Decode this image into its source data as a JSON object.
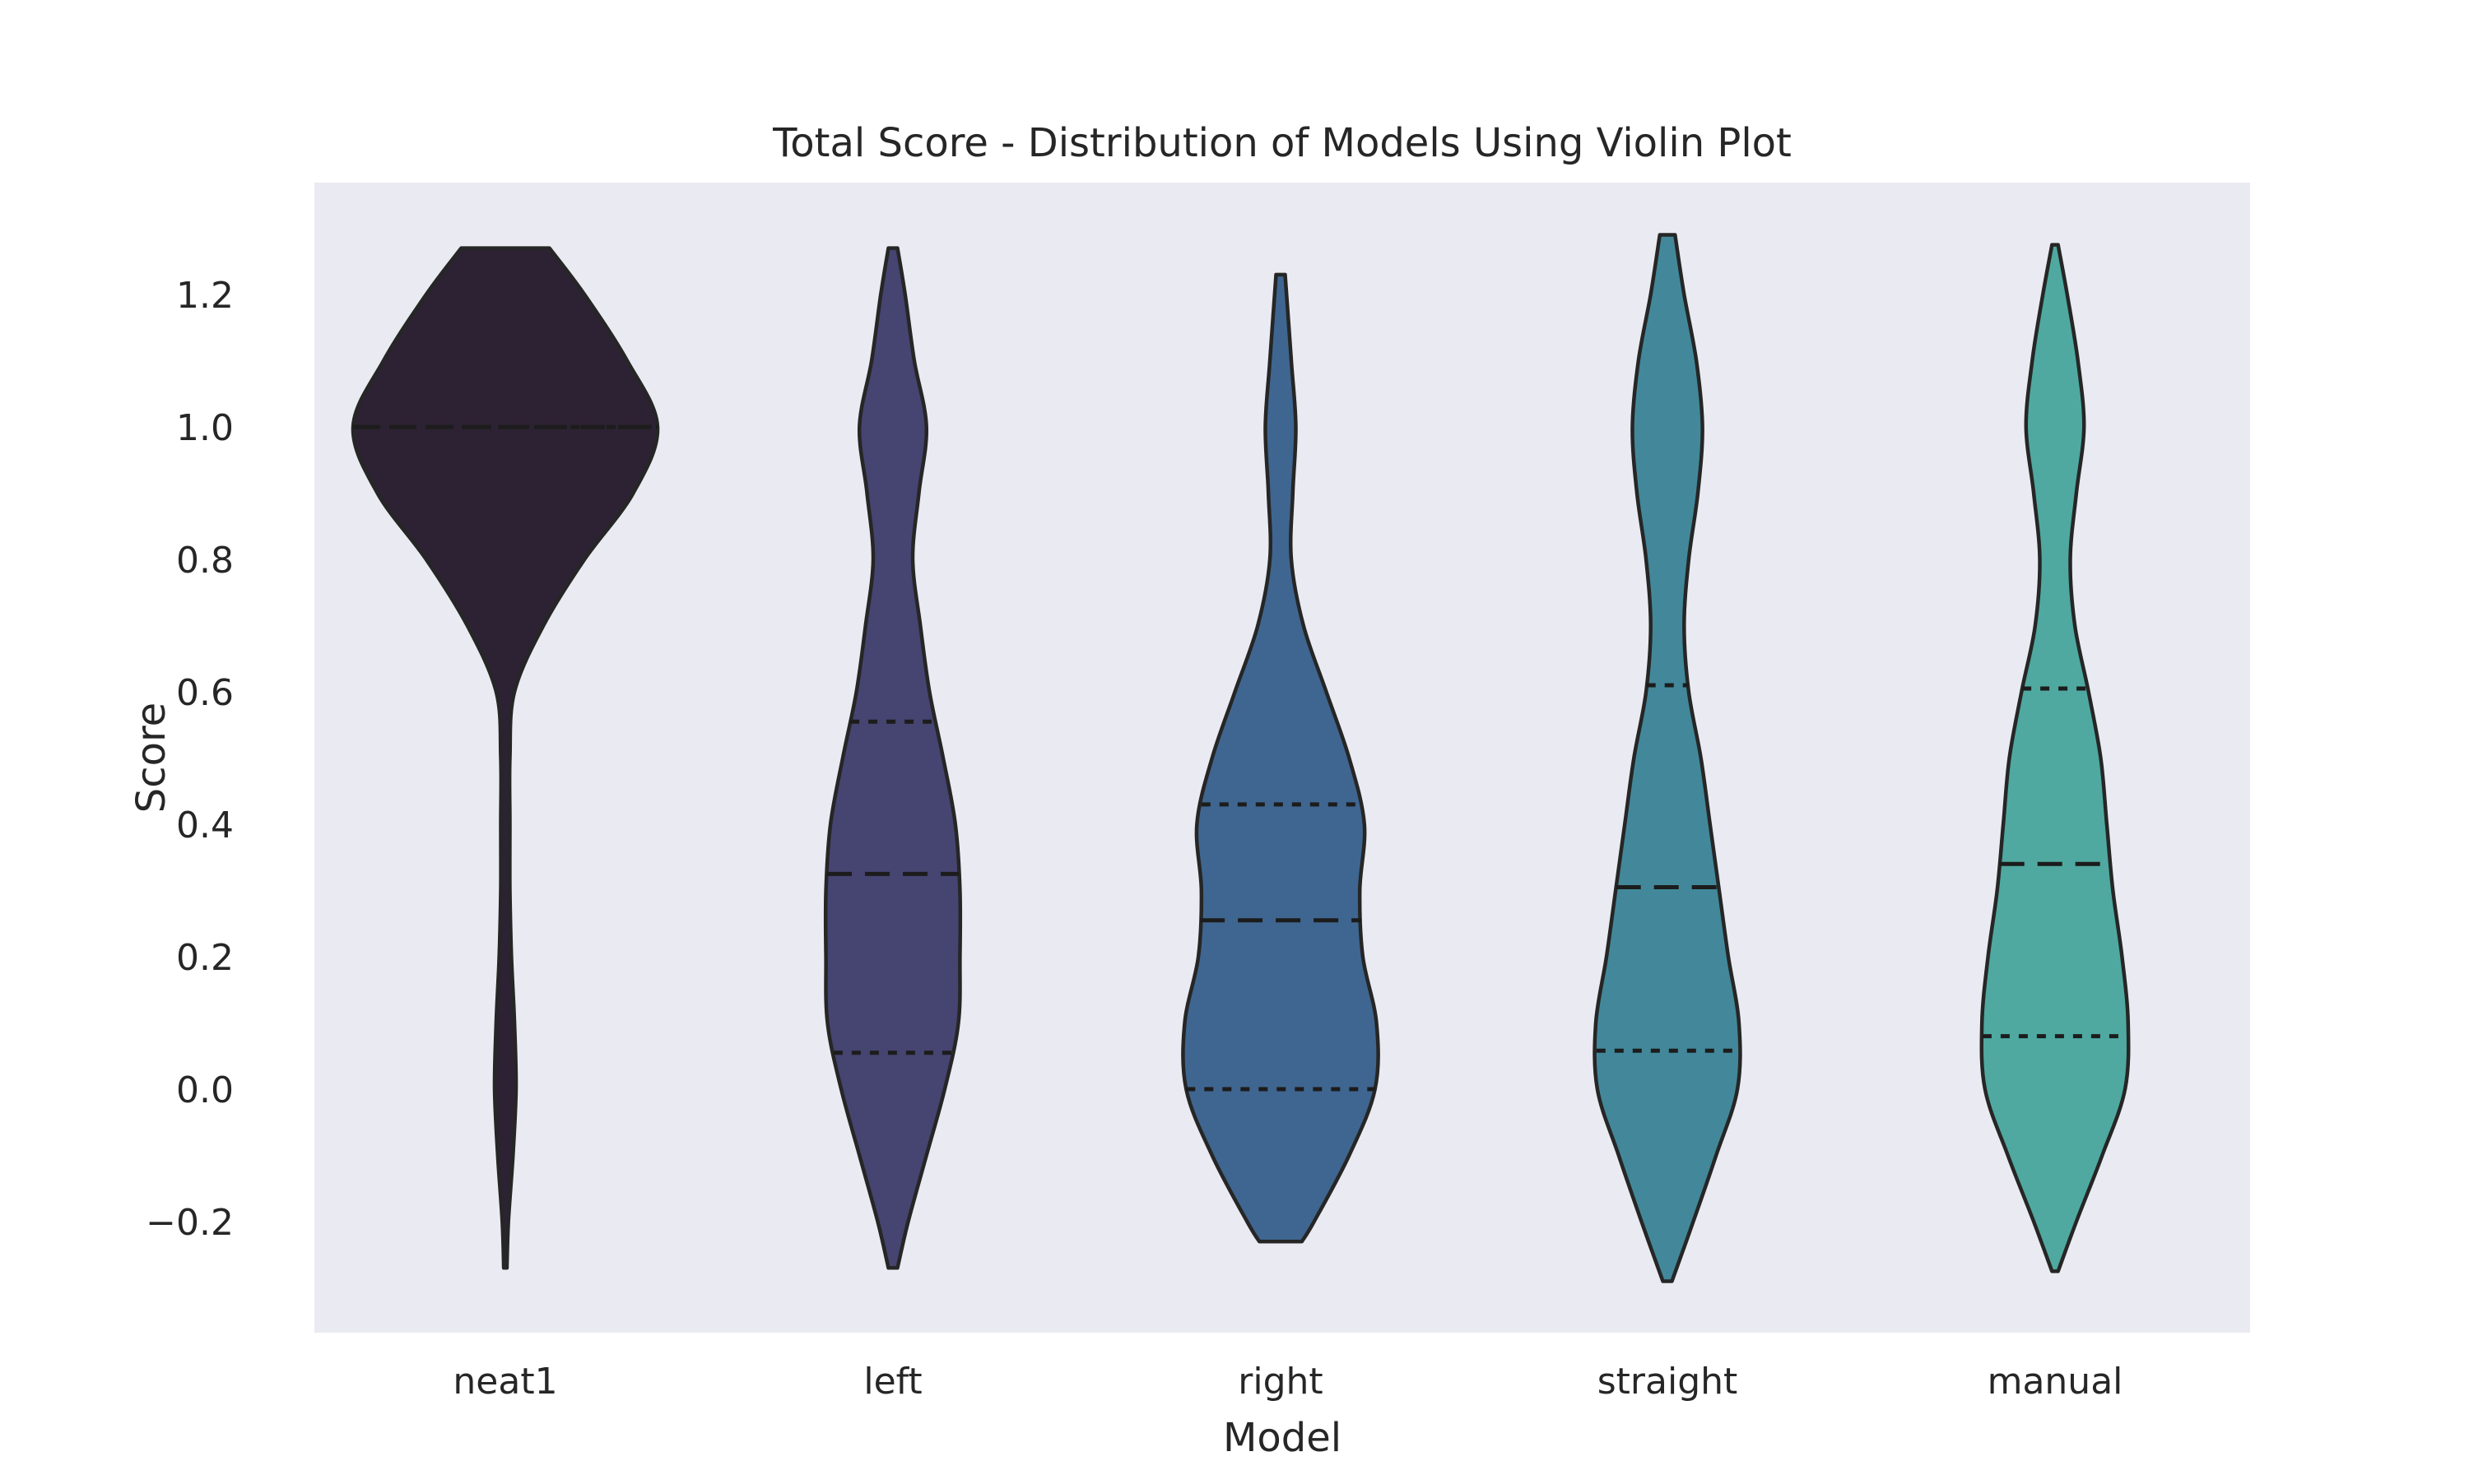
{
  "chart_data": {
    "type": "violin",
    "title": "Total Score - Distribution of Models Using Violin Plot",
    "xlabel": "Model",
    "ylabel": "Score",
    "ylim": [
      -0.33,
      1.38
    ],
    "yticks": [
      {
        "value": -0.2,
        "label": "−0.2"
      },
      {
        "value": 0.0,
        "label": "0.0"
      },
      {
        "value": 0.2,
        "label": "0.2"
      },
      {
        "value": 0.4,
        "label": "0.4"
      },
      {
        "value": 0.6,
        "label": "0.6"
      },
      {
        "value": 0.8,
        "label": "0.8"
      },
      {
        "value": 1.0,
        "label": "1.0"
      },
      {
        "value": 1.2,
        "label": "1.2"
      }
    ],
    "grid": false,
    "inner": "quartile",
    "palette": [
      "#2d2233",
      "#464471",
      "#3f6690",
      "#42889a",
      "#4fa9a0"
    ],
    "edge_color": "#262626",
    "categories": [
      "neat1",
      "left",
      "right",
      "straight",
      "manual"
    ],
    "series": [
      {
        "category": "neat1",
        "color": "#2d2233",
        "min": -0.27,
        "max": 1.27,
        "q1": 1.0,
        "median": 1.0,
        "q3": 1.0,
        "density_profile": [
          [
            1.27,
            0.29
          ],
          [
            1.2,
            0.52
          ],
          [
            1.1,
            0.8
          ],
          [
            1.0,
            1.0
          ],
          [
            0.9,
            0.84
          ],
          [
            0.8,
            0.52
          ],
          [
            0.7,
            0.25
          ],
          [
            0.6,
            0.06
          ],
          [
            0.5,
            0.03
          ],
          [
            0.4,
            0.03
          ],
          [
            0.3,
            0.03
          ],
          [
            0.2,
            0.04
          ],
          [
            0.1,
            0.06
          ],
          [
            0.0,
            0.07
          ],
          [
            -0.1,
            0.05
          ],
          [
            -0.2,
            0.02
          ],
          [
            -0.27,
            0.01
          ]
        ]
      },
      {
        "category": "left",
        "color": "#464471",
        "min": -0.27,
        "max": 1.27,
        "q1": 0.055,
        "median": 0.325,
        "q3": 0.555,
        "density_profile": [
          [
            1.27,
            0.03
          ],
          [
            1.2,
            0.08
          ],
          [
            1.1,
            0.14
          ],
          [
            1.0,
            0.22
          ],
          [
            0.9,
            0.17
          ],
          [
            0.8,
            0.13
          ],
          [
            0.7,
            0.18
          ],
          [
            0.6,
            0.24
          ],
          [
            0.5,
            0.33
          ],
          [
            0.4,
            0.41
          ],
          [
            0.3,
            0.44
          ],
          [
            0.2,
            0.44
          ],
          [
            0.1,
            0.43
          ],
          [
            0.0,
            0.34
          ],
          [
            -0.1,
            0.22
          ],
          [
            -0.2,
            0.1
          ],
          [
            -0.27,
            0.03
          ]
        ]
      },
      {
        "category": "right",
        "color": "#3f6690",
        "min": -0.23,
        "max": 1.23,
        "q1": 0.0,
        "median": 0.255,
        "q3": 0.43,
        "density_profile": [
          [
            1.23,
            0.03
          ],
          [
            1.1,
            0.07
          ],
          [
            1.0,
            0.1
          ],
          [
            0.9,
            0.08
          ],
          [
            0.8,
            0.07
          ],
          [
            0.7,
            0.15
          ],
          [
            0.6,
            0.3
          ],
          [
            0.5,
            0.45
          ],
          [
            0.4,
            0.55
          ],
          [
            0.3,
            0.52
          ],
          [
            0.2,
            0.54
          ],
          [
            0.1,
            0.63
          ],
          [
            0.0,
            0.62
          ],
          [
            -0.1,
            0.45
          ],
          [
            -0.2,
            0.22
          ],
          [
            -0.23,
            0.14
          ]
        ]
      },
      {
        "category": "straight",
        "color": "#42889a",
        "min": -0.29,
        "max": 1.29,
        "q1": 0.058,
        "median": 0.305,
        "q3": 0.61,
        "density_profile": [
          [
            1.29,
            0.05
          ],
          [
            1.2,
            0.11
          ],
          [
            1.1,
            0.19
          ],
          [
            1.0,
            0.23
          ],
          [
            0.9,
            0.2
          ],
          [
            0.8,
            0.14
          ],
          [
            0.7,
            0.11
          ],
          [
            0.6,
            0.14
          ],
          [
            0.5,
            0.22
          ],
          [
            0.4,
            0.28
          ],
          [
            0.3,
            0.34
          ],
          [
            0.2,
            0.4
          ],
          [
            0.1,
            0.47
          ],
          [
            0.0,
            0.46
          ],
          [
            -0.1,
            0.32
          ],
          [
            -0.2,
            0.17
          ],
          [
            -0.29,
            0.03
          ]
        ]
      },
      {
        "category": "manual",
        "color": "#4fa9a0",
        "min": -0.275,
        "max": 1.275,
        "q1": 0.08,
        "median": 0.34,
        "q3": 0.605,
        "density_profile": [
          [
            1.275,
            0.02
          ],
          [
            1.2,
            0.08
          ],
          [
            1.1,
            0.15
          ],
          [
            1.0,
            0.19
          ],
          [
            0.9,
            0.14
          ],
          [
            0.8,
            0.1
          ],
          [
            0.7,
            0.13
          ],
          [
            0.6,
            0.22
          ],
          [
            0.5,
            0.3
          ],
          [
            0.4,
            0.34
          ],
          [
            0.3,
            0.38
          ],
          [
            0.2,
            0.44
          ],
          [
            0.1,
            0.48
          ],
          [
            0.0,
            0.46
          ],
          [
            -0.1,
            0.31
          ],
          [
            -0.2,
            0.14
          ],
          [
            -0.275,
            0.02
          ]
        ]
      }
    ]
  }
}
